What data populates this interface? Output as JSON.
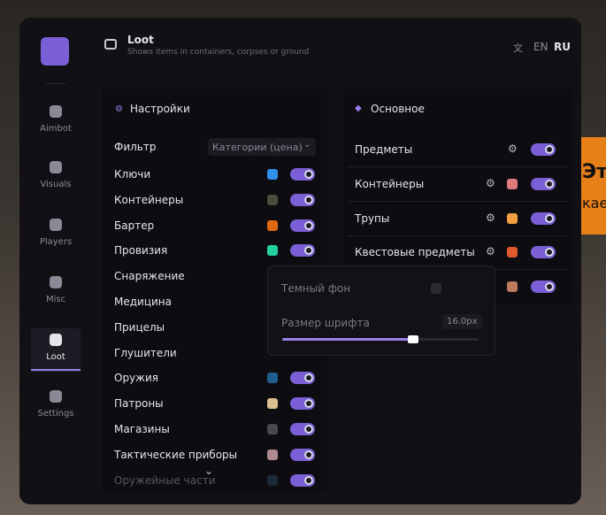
{
  "background": {
    "texts": [
      "Эт",
      "кае"
    ]
  },
  "sidebar": {
    "items": [
      "Aimbot",
      "Visuals",
      "Players",
      "Misc",
      "Loot",
      "Settings"
    ],
    "active": 4
  },
  "header": {
    "title": "Loot",
    "subtitle": "Shows items in containers, corpses or ground",
    "languages": [
      "EN",
      "RU"
    ]
  },
  "settings_panel": {
    "title": "Настройки",
    "filter_label": "Фильтр",
    "filter_value": "Категории (цена)",
    "items": [
      {
        "name": "Ключи",
        "color": "#2f8fe8",
        "enabled": true
      },
      {
        "name": "Контейнеры",
        "color": "#4b4a3c",
        "enabled": true
      },
      {
        "name": "Бартер",
        "color": "#e0680f",
        "enabled": true
      },
      {
        "name": "Провизия",
        "color": "#22d0a0",
        "enabled": true
      },
      {
        "name": "Снаряжение"
      },
      {
        "name": "Медицина"
      },
      {
        "name": "Прицелы"
      },
      {
        "name": "Глушители"
      },
      {
        "name": "Оружия",
        "color": "#1f5f8c",
        "enabled": true
      },
      {
        "name": "Патроны",
        "color": "#d8c090",
        "enabled": true
      },
      {
        "name": "Магазины",
        "color": "#4a4a4c",
        "enabled": true
      },
      {
        "name": "Тактические приборы",
        "color": "#b08a90",
        "enabled": true
      },
      {
        "name": "Оружейные части",
        "color": "#1a2a38",
        "enabled": true
      }
    ]
  },
  "main_panel": {
    "title": "Основное",
    "items": [
      {
        "name": "Предметы",
        "enabled": true
      },
      {
        "name": "Контейнеры",
        "color": "#e07a80",
        "enabled": true
      },
      {
        "name": "Трупы",
        "color": "#f0a040",
        "enabled": true
      },
      {
        "name": "Квестовые предметы",
        "color": "#e05a30",
        "enabled": true
      },
      {
        "color": "#c07a60",
        "enabled": true
      }
    ]
  },
  "popup": {
    "dark_bg_label": "Темный фон",
    "dark_bg_enabled": false,
    "font_size_label": "Размер шрифта",
    "font_size_value": "16.0px"
  }
}
